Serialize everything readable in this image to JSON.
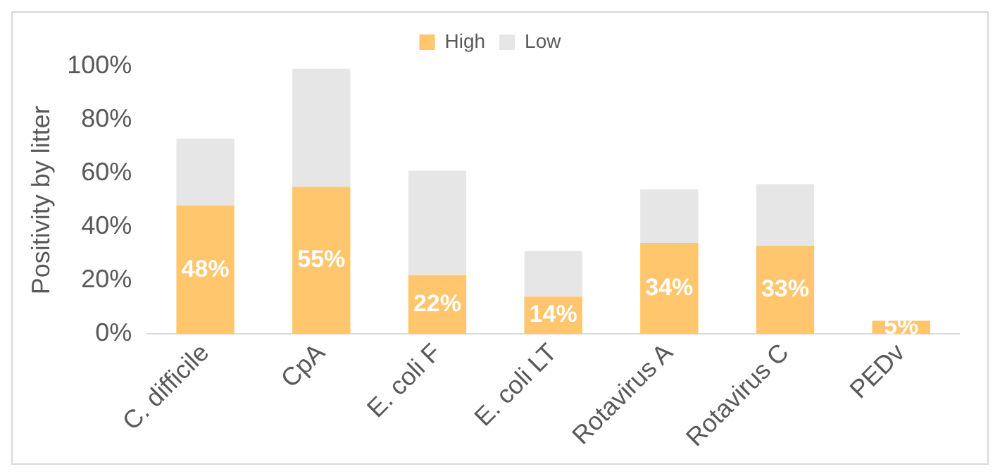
{
  "chart_data": {
    "type": "bar",
    "stacked": true,
    "ylabel": "Positivity by litter",
    "categories": [
      "C. difficile",
      "CpA",
      "E. coli F",
      "E. coli LT",
      "Rotavirus A",
      "Rotavirus C",
      "PEDv"
    ],
    "series": [
      {
        "name": "High",
        "color": "#ffc66d",
        "values": [
          48,
          55,
          22,
          14,
          34,
          33,
          5
        ],
        "value_labels": [
          "48%",
          "55%",
          "22%",
          "14%",
          "34%",
          "33%",
          "5%"
        ]
      },
      {
        "name": "Low",
        "color": "#e6e6e6",
        "values": [
          25,
          44,
          39,
          17,
          20,
          23,
          0
        ]
      }
    ],
    "ylim": [
      0,
      100
    ],
    "yticks": [
      {
        "value": 0,
        "label": "0%"
      },
      {
        "value": 20,
        "label": "20%"
      },
      {
        "value": 40,
        "label": "40%"
      },
      {
        "value": 60,
        "label": "60%"
      },
      {
        "value": 80,
        "label": "80%"
      },
      {
        "value": 100,
        "label": "100%"
      }
    ],
    "grid": false,
    "legend": "top"
  }
}
